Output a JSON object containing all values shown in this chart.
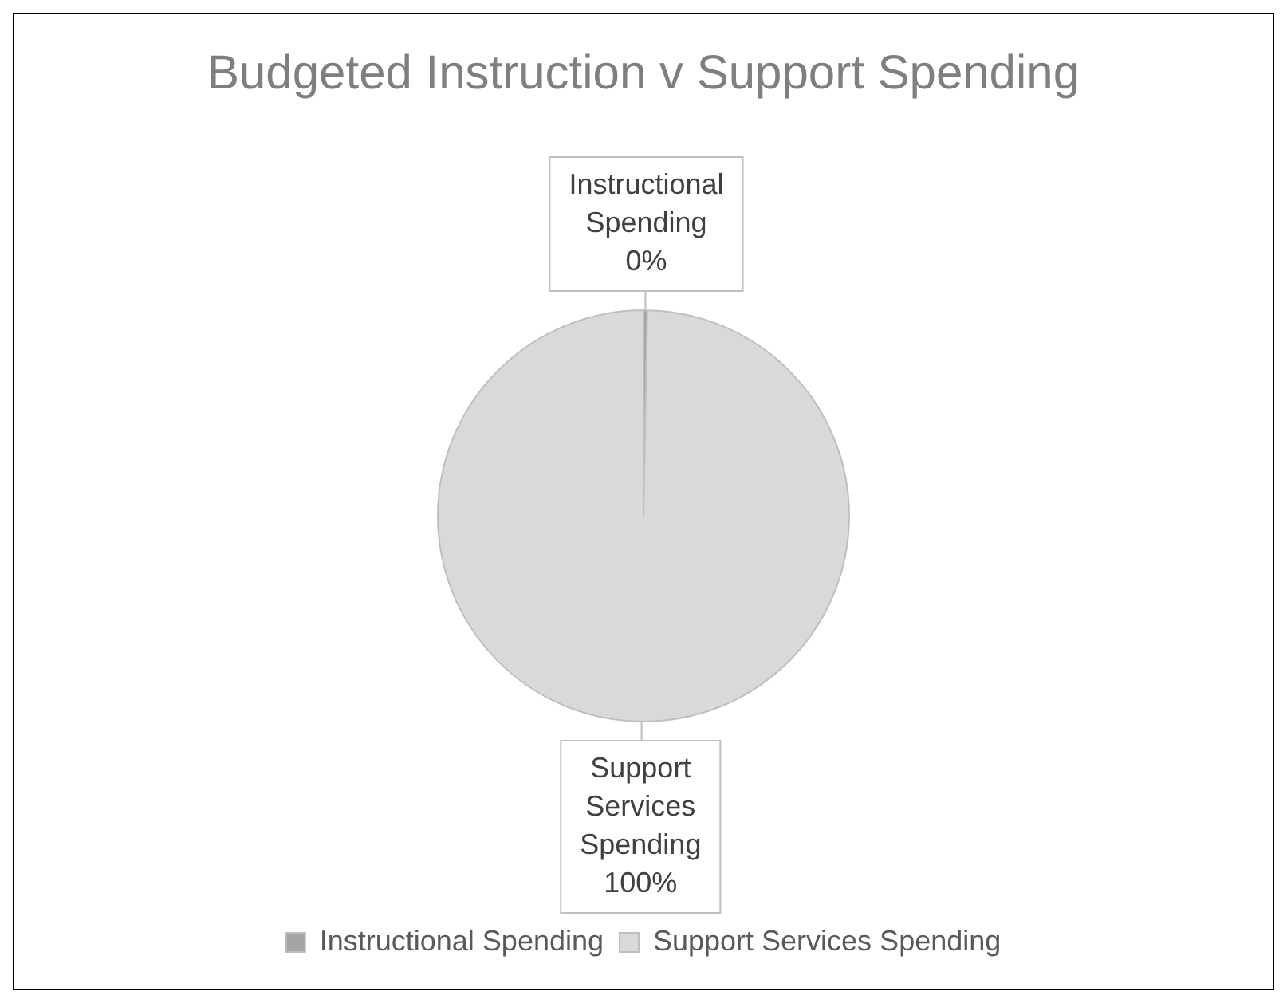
{
  "chart_data": {
    "type": "pie",
    "title": "Budgeted Instruction v Support Spending",
    "categories": [
      "Instructional Spending",
      "Support Services Spending"
    ],
    "values": [
      0.3,
      99.7
    ],
    "value_labels": [
      "0%",
      "100%"
    ],
    "colors": [
      "#a5a5a5",
      "#d9d9d9"
    ],
    "legend": "bottom"
  }
}
